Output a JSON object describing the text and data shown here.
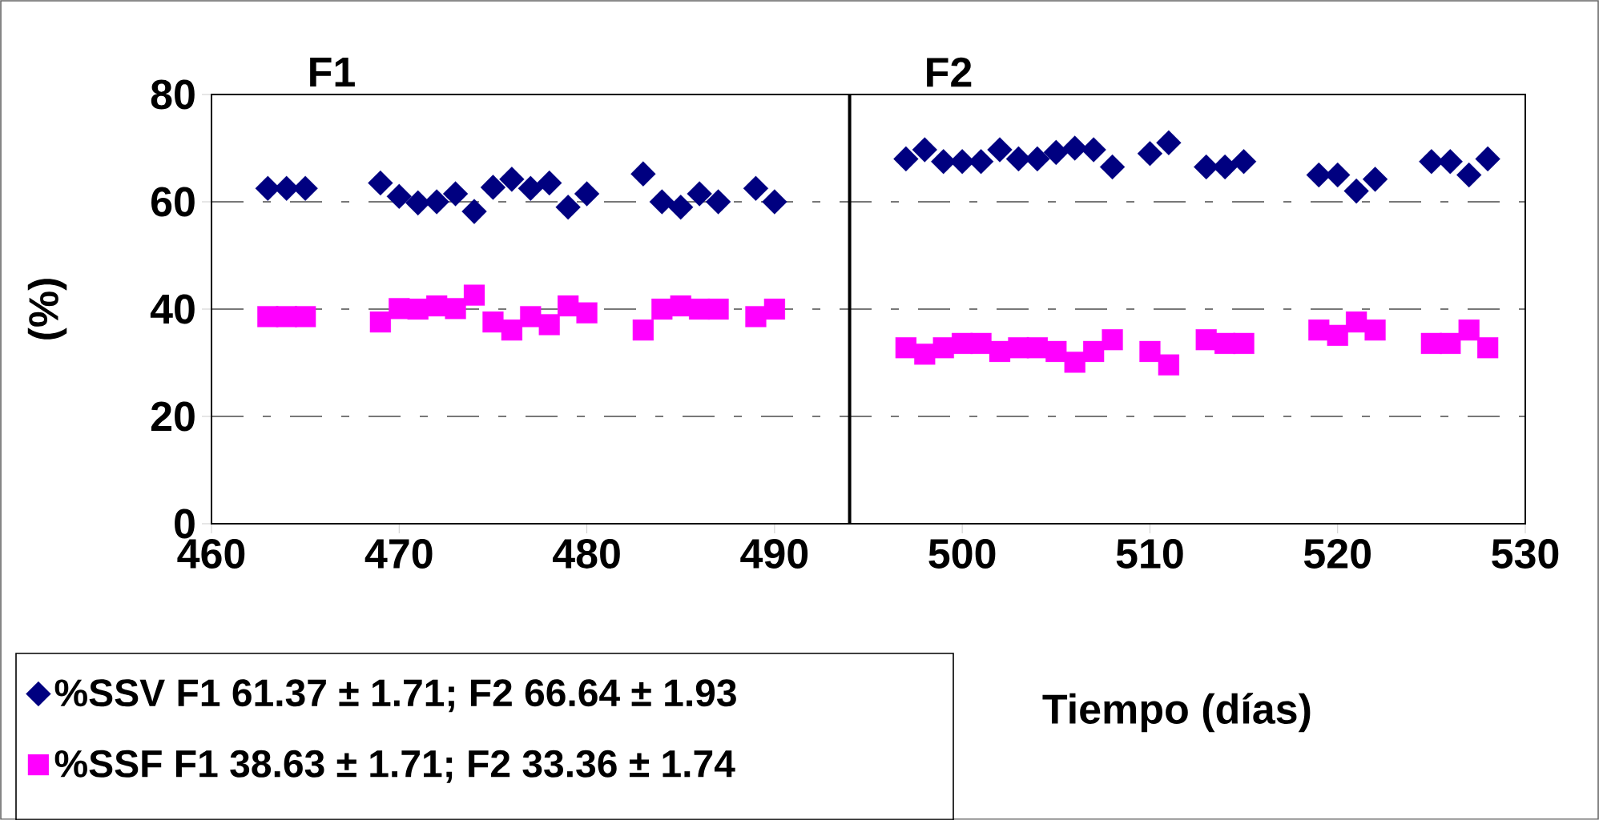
{
  "chart_data": {
    "type": "scatter",
    "xlabel": "Tiempo (días)",
    "ylabel": "(%)",
    "xlim": [
      460,
      530
    ],
    "ylim": [
      0,
      80
    ],
    "xticks": [
      460,
      470,
      480,
      490,
      500,
      510,
      520,
      530
    ],
    "yticks": [
      0,
      20,
      40,
      60,
      80
    ],
    "grid": "y",
    "legend": "bottom left",
    "ref_lines": [
      {
        "axis": "x",
        "value": 494,
        "color": "#000000"
      }
    ],
    "annotations": [
      "F1",
      "F2"
    ],
    "series": [
      {
        "name": "%SSV  F1 61.37 ± 1.71; F2 66.64 ± 1.93",
        "color": "#000080",
        "marker": "diamond",
        "x": [
          463,
          464,
          465,
          469,
          470,
          471,
          472,
          473,
          474,
          475,
          476,
          477,
          478,
          479,
          480,
          483,
          484,
          485,
          486,
          487,
          489,
          490,
          497,
          498,
          499,
          500,
          501,
          502,
          503,
          504,
          505,
          506,
          507,
          508,
          510,
          511,
          513,
          514,
          515,
          519,
          520,
          521,
          522,
          525,
          526,
          527,
          528
        ],
        "values": [
          62.5,
          62.5,
          62.5,
          63.5,
          61,
          59.8,
          60,
          61.5,
          58.2,
          62.7,
          64.2,
          62.5,
          63.5,
          59,
          61.5,
          65.2,
          60,
          59,
          61.5,
          60,
          62.5,
          60,
          68,
          69.7,
          67.5,
          67.5,
          67.5,
          69.7,
          68,
          68,
          69.2,
          70,
          69.7,
          66.5,
          69,
          71,
          66.5,
          66.5,
          67.5,
          65,
          65,
          62,
          64.2,
          67.5,
          67.5,
          65,
          68
        ]
      },
      {
        "name": "%SSF F1 38.63 ± 1.71; F2 33.36 ± 1.74",
        "color": "#ff00ff",
        "marker": "square",
        "x": [
          463,
          464,
          465,
          469,
          470,
          471,
          472,
          473,
          474,
          475,
          476,
          477,
          478,
          479,
          480,
          483,
          484,
          485,
          486,
          487,
          489,
          490,
          497,
          498,
          499,
          500,
          501,
          502,
          503,
          504,
          505,
          506,
          507,
          508,
          510,
          511,
          513,
          514,
          515,
          519,
          520,
          521,
          522,
          525,
          526,
          527,
          528
        ],
        "values": [
          38.6,
          38.6,
          38.6,
          37.6,
          40.1,
          40,
          40.6,
          40.1,
          42.6,
          37.6,
          36.1,
          38.6,
          37.1,
          40.6,
          39.3,
          36.1,
          40,
          40.6,
          40,
          40,
          38.6,
          40,
          32.8,
          31.6,
          32.8,
          33.6,
          33.6,
          32.1,
          32.8,
          32.8,
          32.1,
          30.1,
          32.1,
          34.3,
          32.1,
          29.6,
          34.3,
          33.6,
          33.6,
          36.1,
          35.1,
          37.6,
          36.1,
          33.6,
          33.6,
          36.1,
          32.8
        ]
      }
    ]
  }
}
